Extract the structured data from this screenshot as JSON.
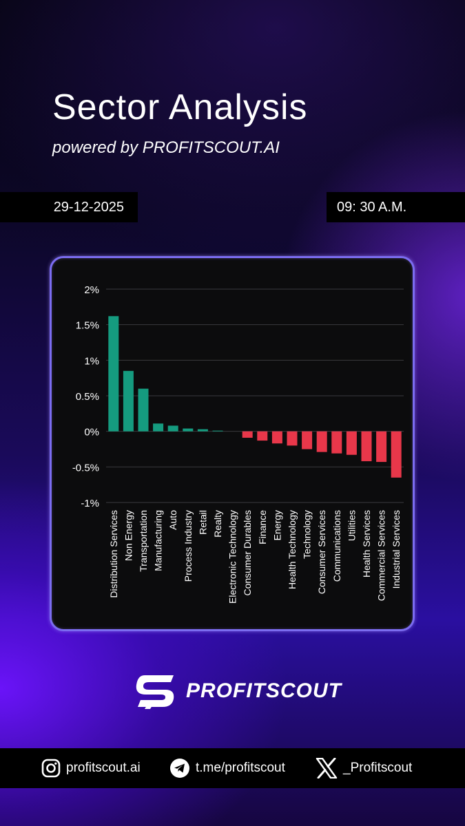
{
  "header": {
    "title": "Sector Analysis",
    "subtitle": "powered by PROFITSCOUT.AI",
    "date": "29-12-2025",
    "time": "09: 30 A.M."
  },
  "chart_data": {
    "type": "bar",
    "categories": [
      "Distribution Services",
      "Non Energy",
      "Transportation",
      "Manufacturing",
      "Auto",
      "Process Industry",
      "Retail",
      "Realty",
      "Electronic Technology",
      "Consumer Durables",
      "Finance",
      "Energy",
      "Health Technology",
      "Technology",
      "Consumer Services",
      "Communications",
      "Utilities",
      "Health Services",
      "Commercial Services",
      "Industrial Services"
    ],
    "values": [
      1.62,
      0.85,
      0.6,
      0.11,
      0.08,
      0.04,
      0.03,
      0.01,
      0.0,
      -0.09,
      -0.13,
      -0.17,
      -0.2,
      -0.25,
      -0.29,
      -0.31,
      -0.33,
      -0.42,
      -0.43,
      -0.65
    ],
    "yticks": [
      "2%",
      "1.5%",
      "1%",
      "0.5%",
      "0%",
      "-0.5%",
      "-1%"
    ],
    "ylim": [
      -1,
      2
    ],
    "grid": true,
    "colors": {
      "positive": "#159b7f",
      "negative": "#e8374a",
      "grid": "#3a3a3e"
    }
  },
  "brand": {
    "name": "PROFITSCOUT",
    "icon": "profitscout-logo-icon"
  },
  "footer": {
    "instagram": {
      "icon": "instagram-icon",
      "label": "profitscout.ai"
    },
    "telegram": {
      "icon": "telegram-icon",
      "label": "t.me/profitscout"
    },
    "x": {
      "icon": "x-icon",
      "label": "_Profitscout"
    }
  }
}
